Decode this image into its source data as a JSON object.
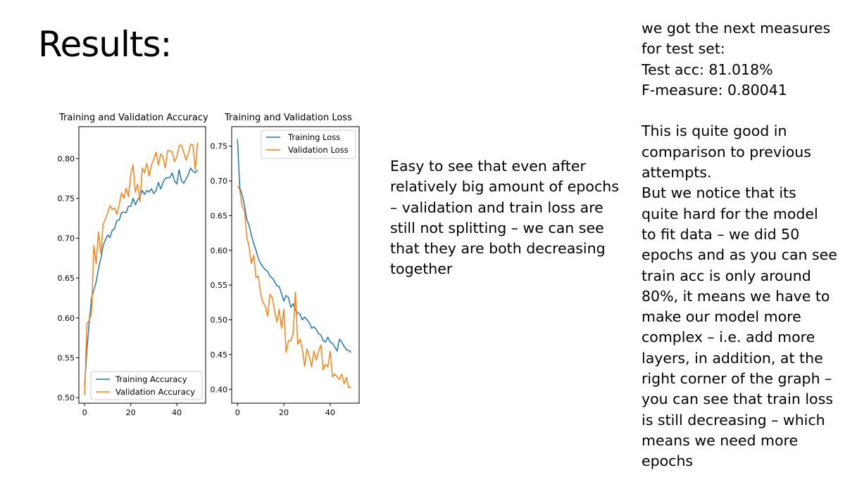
{
  "slide": {
    "title": "Results:",
    "middle_text": "Easy to see that even after relatively big amount of epochs – validation and train loss are still not splitting – we can see that they are both decreasing together",
    "right_lines": [
      "we got the next measures",
      "for test set:",
      "Test acc: 81.018%",
      "F-measure: 0.80041",
      "",
      "This is quite good in",
      "comparison to previous",
      "attempts.",
      "But we notice that its",
      "quite hard for the model",
      "to fit data – we did 50",
      "epochs and as you can see",
      "train acc is only around",
      "80%, it means we have to",
      "make our model more",
      "complex – i.e. add more",
      "layers, in addition, at the",
      "right corner of the graph –",
      "you can see that train loss",
      "is still decreasing – which",
      "means we need more",
      "epochs"
    ]
  },
  "colors": {
    "training": "#1f77b4",
    "validation": "#ff7f0e"
  },
  "chart_data": [
    {
      "type": "line",
      "title": "Training and Validation Accuracy",
      "xlim": [
        -2.5,
        52.5
      ],
      "ylim": [
        0.493,
        0.84
      ],
      "xticks": [
        0,
        20,
        40
      ],
      "yticks": [
        0.5,
        0.55,
        0.6,
        0.65,
        0.7,
        0.75,
        0.8
      ],
      "ytick_labels": [
        "0.50",
        "0.55",
        "0.60",
        "0.65",
        "0.70",
        "0.75",
        "0.80"
      ],
      "legend": "lower-right",
      "series": [
        {
          "name": "Training Accuracy",
          "values": [
            0.515,
            0.56,
            0.595,
            0.625,
            0.635,
            0.645,
            0.662,
            0.674,
            0.69,
            0.698,
            0.704,
            0.701,
            0.71,
            0.712,
            0.722,
            0.723,
            0.732,
            0.733,
            0.732,
            0.74,
            0.74,
            0.75,
            0.742,
            0.748,
            0.752,
            0.76,
            0.755,
            0.76,
            0.758,
            0.762,
            0.756,
            0.76,
            0.77,
            0.762,
            0.77,
            0.775,
            0.776,
            0.776,
            0.782,
            0.772,
            0.768,
            0.786,
            0.772,
            0.769,
            0.774,
            0.78,
            0.788,
            0.784,
            0.782,
            0.786
          ]
        },
        {
          "name": "Validation Accuracy",
          "values": [
            0.503,
            0.593,
            0.597,
            0.606,
            0.691,
            0.668,
            0.708,
            0.681,
            0.717,
            0.724,
            0.732,
            0.741,
            0.736,
            0.738,
            0.73,
            0.742,
            0.757,
            0.75,
            0.763,
            0.752,
            0.78,
            0.792,
            0.758,
            0.768,
            0.746,
            0.788,
            0.782,
            0.794,
            0.778,
            0.792,
            0.799,
            0.808,
            0.792,
            0.806,
            0.802,
            0.788,
            0.81,
            0.81,
            0.808,
            0.796,
            0.802,
            0.816,
            0.817,
            0.808,
            0.798,
            0.806,
            0.818,
            0.817,
            0.786,
            0.82
          ]
        }
      ]
    },
    {
      "type": "line",
      "title": "Training and Validation Loss",
      "xlim": [
        -2.5,
        52.5
      ],
      "ylim": [
        0.38,
        0.778
      ],
      "xticks": [
        0,
        20,
        40
      ],
      "yticks": [
        0.4,
        0.45,
        0.5,
        0.55,
        0.6,
        0.65,
        0.7,
        0.75
      ],
      "ytick_labels": [
        "0.40",
        "0.45",
        "0.50",
        "0.55",
        "0.60",
        "0.65",
        "0.70",
        "0.75"
      ],
      "legend": "upper-right",
      "series": [
        {
          "name": "Training Loss",
          "values": [
            0.76,
            0.69,
            0.68,
            0.665,
            0.645,
            0.636,
            0.622,
            0.61,
            0.6,
            0.588,
            0.581,
            0.576,
            0.572,
            0.57,
            0.563,
            0.56,
            0.555,
            0.549,
            0.548,
            0.538,
            0.527,
            0.535,
            0.532,
            0.518,
            0.523,
            0.514,
            0.51,
            0.508,
            0.5,
            0.504,
            0.5,
            0.496,
            0.488,
            0.49,
            0.486,
            0.48,
            0.478,
            0.47,
            0.468,
            0.475,
            0.468,
            0.466,
            0.461,
            0.455,
            0.472,
            0.468,
            0.462,
            0.457,
            0.456,
            0.453
          ]
        },
        {
          "name": "Validation Loss",
          "values": [
            0.693,
            0.687,
            0.663,
            0.658,
            0.62,
            0.605,
            0.581,
            0.593,
            0.561,
            0.563,
            0.537,
            0.525,
            0.52,
            0.505,
            0.537,
            0.532,
            0.513,
            0.497,
            0.515,
            0.488,
            0.515,
            0.453,
            0.47,
            0.47,
            0.48,
            0.54,
            0.465,
            0.472,
            0.458,
            0.433,
            0.458,
            0.448,
            0.432,
            0.455,
            0.442,
            0.455,
            0.464,
            0.428,
            0.436,
            0.432,
            0.455,
            0.418,
            0.422,
            0.418,
            0.414,
            0.422,
            0.408,
            0.417,
            0.402,
            0.404
          ]
        }
      ]
    }
  ]
}
